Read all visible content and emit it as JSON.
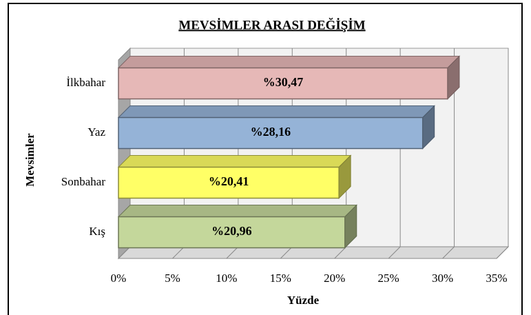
{
  "chart_data": {
    "type": "bar3d_horizontal",
    "title": "MEVSİMLER ARASI DEĞİŞİM",
    "xlabel": "Yüzde",
    "ylabel": "Mevsimler",
    "categories": [
      "İlkbahar",
      "Yaz",
      "Sonbahar",
      "Kış"
    ],
    "values": [
      30.47,
      28.16,
      20.41,
      20.96
    ],
    "value_labels": [
      "%30,47",
      "%28,16",
      "%20,41",
      "%20,96"
    ],
    "colors": [
      "#e6b8b7",
      "#95b3d7",
      "#ffff66",
      "#c4d79b"
    ],
    "xlim": [
      0,
      35
    ],
    "xticks": [
      {
        "value": 0,
        "label": "0%"
      },
      {
        "value": 5,
        "label": "5%"
      },
      {
        "value": 10,
        "label": "10%"
      },
      {
        "value": 15,
        "label": "15%"
      },
      {
        "value": 20,
        "label": "20%"
      },
      {
        "value": 25,
        "label": "25%"
      },
      {
        "value": 30,
        "label": "30%"
      },
      {
        "value": 35,
        "label": "35%"
      }
    ],
    "grid": true
  }
}
